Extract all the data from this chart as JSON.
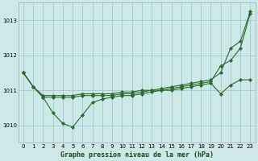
{
  "title": "Graphe pression niveau de la mer (hPa)",
  "bg_color": "#cce8e8",
  "grid_color": "#aacccc",
  "line_color": "#2d6a2d",
  "marker_color": "#2d6a2d",
  "xlim": [
    -0.5,
    23.5
  ],
  "ylim": [
    1009.5,
    1013.5
  ],
  "yticks": [
    1010,
    1011,
    1012,
    1013
  ],
  "xticks": [
    0,
    1,
    2,
    3,
    4,
    5,
    6,
    7,
    8,
    9,
    10,
    11,
    12,
    13,
    14,
    15,
    16,
    17,
    18,
    19,
    20,
    21,
    22,
    23
  ],
  "series1": [
    1011.5,
    1011.1,
    1010.8,
    1010.8,
    1010.8,
    1010.8,
    1010.85,
    1010.85,
    1010.85,
    1010.85,
    1010.9,
    1010.9,
    1010.95,
    1011.0,
    1011.0,
    1011.05,
    1011.1,
    1011.15,
    1011.2,
    1011.25,
    1011.7,
    1011.85,
    1012.2,
    1013.2
  ],
  "series2": [
    1011.5,
    1011.1,
    1010.85,
    1010.85,
    1010.85,
    1010.85,
    1010.9,
    1010.9,
    1010.9,
    1010.9,
    1010.95,
    1010.95,
    1011.0,
    1011.0,
    1011.05,
    1011.1,
    1011.15,
    1011.2,
    1011.25,
    1011.3,
    1011.5,
    1012.2,
    1012.4,
    1013.25
  ],
  "series3": [
    1011.5,
    1011.1,
    1010.8,
    1010.35,
    1010.05,
    1009.95,
    1010.3,
    1010.65,
    1010.75,
    1010.8,
    1010.85,
    1010.85,
    1010.9,
    1010.95,
    1011.0,
    1011.0,
    1011.05,
    1011.1,
    1011.15,
    1011.2,
    1010.9,
    1011.15,
    1011.3,
    1011.3
  ]
}
